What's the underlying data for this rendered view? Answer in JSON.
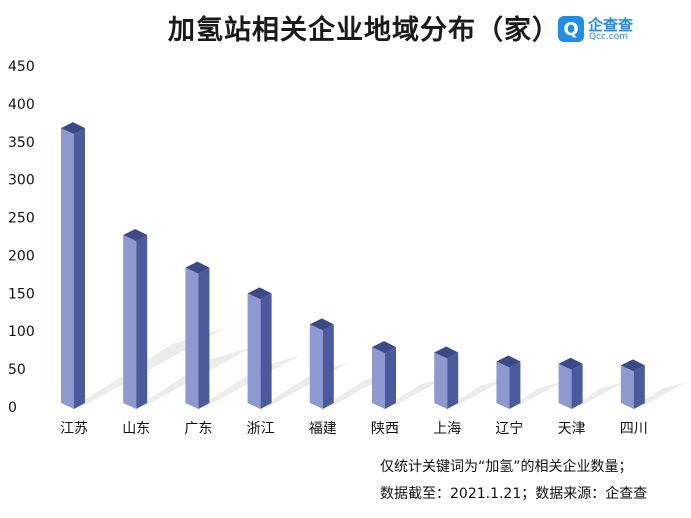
{
  "title": "加氢站相关企业地域分布（家）",
  "logo": {
    "name": "企查查",
    "sub": "Qcc.com",
    "mark": "Q"
  },
  "notes": [
    "仅统计关键词为“加氢”的相关企业数量；",
    "数据截至：2021.1.21；数据来源：企查查"
  ],
  "colors": {
    "bar_front": "#8d99cf",
    "bar_side": "#4b5a9c",
    "bar_top": "#3b4a86",
    "shadow": "#dcdcdc"
  },
  "chart_data": {
    "type": "bar",
    "title": "加氢站相关企业地域分布（家）",
    "categories": [
      "江苏",
      "山东",
      "广东",
      "浙江",
      "福建",
      "陕西",
      "上海",
      "辽宁",
      "天津",
      "四川"
    ],
    "values": [
      368,
      227,
      184,
      150,
      109,
      79,
      72,
      60,
      57,
      55
    ],
    "ylim": [
      0,
      450
    ],
    "yticks": [
      0,
      50,
      100,
      150,
      200,
      250,
      300,
      350,
      400,
      450
    ],
    "grid": false,
    "xlabel": "",
    "ylabel": ""
  }
}
